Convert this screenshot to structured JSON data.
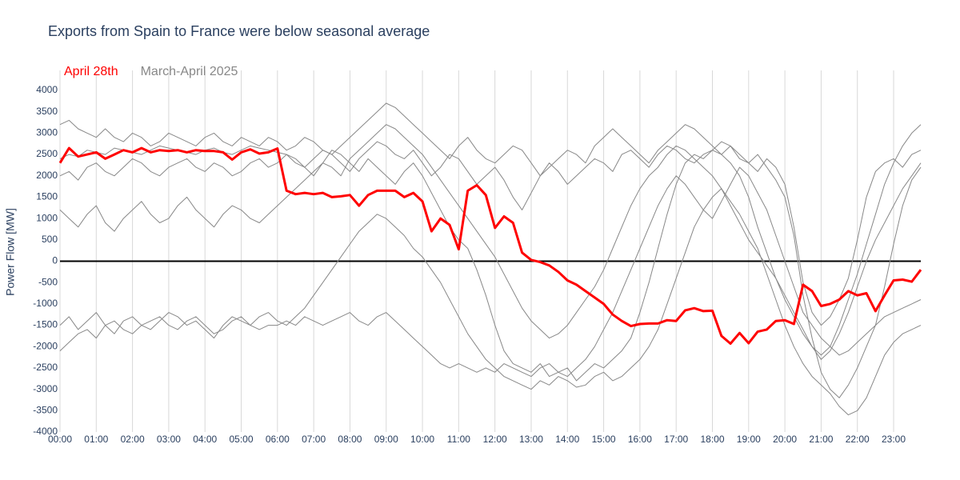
{
  "chart_data": {
    "type": "line",
    "title": "Exports from Spain to France were below seasonal average",
    "y_label": "Power Flow [MW]",
    "x": [
      0,
      15,
      30,
      45,
      60,
      75,
      90,
      105,
      120,
      135,
      150,
      165,
      180,
      195,
      210,
      225,
      240,
      255,
      270,
      285,
      300,
      315,
      330,
      345,
      360,
      375,
      390,
      405,
      420,
      435,
      450,
      465,
      480,
      495,
      510,
      525,
      540,
      555,
      570,
      585,
      600,
      615,
      630,
      645,
      660,
      675,
      690,
      705,
      720,
      735,
      750,
      765,
      780,
      795,
      810,
      825,
      840,
      855,
      870,
      885,
      900,
      915,
      930,
      945,
      960,
      975,
      990,
      1005,
      1020,
      1035,
      1050,
      1065,
      1080,
      1095,
      1110,
      1125,
      1140,
      1155,
      1170,
      1185,
      1200,
      1215,
      1230,
      1245,
      1260,
      1275,
      1290,
      1305,
      1320,
      1335,
      1350,
      1365,
      1380,
      1395,
      1410,
      1425
    ],
    "xlim": [
      0,
      1425
    ],
    "xticks": [
      {
        "value": 0,
        "label": "00:00"
      },
      {
        "value": 60,
        "label": "01:00"
      },
      {
        "value": 120,
        "label": "02:00"
      },
      {
        "value": 180,
        "label": "03:00"
      },
      {
        "value": 240,
        "label": "04:00"
      },
      {
        "value": 300,
        "label": "05:00"
      },
      {
        "value": 360,
        "label": "06:00"
      },
      {
        "value": 420,
        "label": "07:00"
      },
      {
        "value": 480,
        "label": "08:00"
      },
      {
        "value": 540,
        "label": "09:00"
      },
      {
        "value": 600,
        "label": "10:00"
      },
      {
        "value": 660,
        "label": "11:00"
      },
      {
        "value": 720,
        "label": "12:00"
      },
      {
        "value": 780,
        "label": "13:00"
      },
      {
        "value": 840,
        "label": "14:00"
      },
      {
        "value": 900,
        "label": "15:00"
      },
      {
        "value": 960,
        "label": "16:00"
      },
      {
        "value": 1020,
        "label": "17:00"
      },
      {
        "value": 1080,
        "label": "18:00"
      },
      {
        "value": 1140,
        "label": "19:00"
      },
      {
        "value": 1200,
        "label": "20:00"
      },
      {
        "value": 1260,
        "label": "21:00"
      },
      {
        "value": 1320,
        "label": "22:00"
      },
      {
        "value": 1380,
        "label": "23:00"
      }
    ],
    "ylim": [
      -4000,
      4000
    ],
    "yticks": [
      -4000,
      -3500,
      -3000,
      -2500,
      -2000,
      -1500,
      -1000,
      -500,
      0,
      500,
      1000,
      1500,
      2000,
      2500,
      3000,
      3500,
      4000
    ],
    "x_grid": true,
    "series": [
      {
        "name": "March-April 2025",
        "color": "#888888",
        "values": [
          [
            2400,
            2500,
            2450,
            2600,
            2550,
            2500,
            2650,
            2600,
            2550,
            2500,
            2600,
            2700,
            2650,
            2600,
            2550,
            2500,
            2600,
            2650,
            2550,
            2500,
            2600,
            2700,
            2650,
            2600,
            2550,
            2500,
            2300,
            2200,
            2400,
            2600,
            2500,
            2300,
            2100,
            2400,
            2600,
            2800,
            2700,
            2500,
            2400,
            2600,
            2300,
            2000,
            2200,
            2500,
            2400,
            2100,
            1800,
            2000,
            2200,
            1900,
            1500,
            1200,
            1600,
            2000,
            2300,
            2100,
            1800,
            2000,
            2200,
            2400,
            2300,
            2100,
            2500,
            2600,
            2400,
            2200,
            2500,
            2700,
            2600,
            2400,
            2300,
            2500,
            2600,
            2800,
            2700,
            2500,
            2300,
            2100,
            2400,
            2200,
            1800,
            800,
            -500,
            -1200,
            -1500,
            -1300,
            -900,
            -400,
            500,
            1500,
            2100,
            2300,
            2400,
            2200,
            2500,
            2600
          ],
          [
            2000,
            2100,
            1900,
            2200,
            2300,
            2100,
            2000,
            2200,
            2400,
            2300,
            2100,
            2000,
            2200,
            2300,
            2400,
            2200,
            2100,
            2300,
            2200,
            2000,
            2100,
            2300,
            2400,
            2200,
            2300,
            2500,
            2400,
            2200,
            2000,
            2300,
            2600,
            2500,
            2300,
            2100,
            2400,
            2200,
            2000,
            1800,
            2100,
            2300,
            2000,
            1600,
            1200,
            800,
            500,
            300,
            -200,
            -800,
            -1500,
            -2100,
            -2400,
            -2500,
            -2600,
            -2400,
            -2700,
            -2600,
            -2500,
            -2800,
            -2600,
            -2400,
            -2500,
            -2300,
            -2100,
            -1800,
            -1200,
            -500,
            300,
            1100,
            1800,
            2300,
            2500,
            2400,
            2600,
            2500,
            2700,
            2400,
            2300,
            2500,
            2200,
            1900,
            1500,
            600,
            -800,
            -1800,
            -2600,
            -3000,
            -3200,
            -2900,
            -2500,
            -2000,
            -1500,
            -600,
            400,
            1300,
            1900,
            2200
          ],
          [
            -1500,
            -1300,
            -1600,
            -1400,
            -1200,
            -1500,
            -1700,
            -1400,
            -1300,
            -1500,
            -1600,
            -1400,
            -1200,
            -1300,
            -1500,
            -1400,
            -1600,
            -1800,
            -1500,
            -1300,
            -1400,
            -1500,
            -1300,
            -1200,
            -1400,
            -1500,
            -1300,
            -1100,
            -800,
            -500,
            -200,
            100,
            400,
            700,
            900,
            1100,
            1000,
            800,
            600,
            300,
            100,
            -200,
            -500,
            -900,
            -1300,
            -1700,
            -2000,
            -2300,
            -2500,
            -2700,
            -2800,
            -2900,
            -3000,
            -2800,
            -2900,
            -2700,
            -2800,
            -2950,
            -2900,
            -2700,
            -2600,
            -2800,
            -2700,
            -2500,
            -2300,
            -2000,
            -1600,
            -1000,
            -400,
            200,
            800,
            1200,
            1500,
            1700,
            1400,
            1100,
            700,
            300,
            -300,
            -900,
            -1500,
            -2000,
            -2400,
            -2700,
            -2900,
            -3100,
            -3400,
            -3600,
            -3500,
            -3200,
            -2700,
            -2200,
            -1900,
            -1700,
            -1600,
            -1500
          ],
          [
            1200,
            1000,
            800,
            1100,
            1300,
            900,
            700,
            1000,
            1200,
            1400,
            1100,
            900,
            1000,
            1300,
            1500,
            1200,
            1000,
            800,
            1100,
            1300,
            1200,
            1000,
            900,
            1100,
            1300,
            1500,
            1700,
            1900,
            2100,
            2300,
            2200,
            2000,
            2400,
            2600,
            2800,
            3000,
            3200,
            3100,
            2900,
            2700,
            2500,
            2200,
            1900,
            1600,
            1300,
            1000,
            700,
            400,
            100,
            -300,
            -700,
            -1100,
            -1400,
            -1600,
            -1800,
            -1700,
            -1500,
            -1200,
            -900,
            -600,
            -200,
            300,
            800,
            1300,
            1700,
            2000,
            2200,
            2500,
            2700,
            2600,
            2400,
            2200,
            2000,
            1700,
            1300,
            900,
            500,
            200,
            -100,
            -400,
            -800,
            -1200,
            -1600,
            -2000,
            -2300,
            -2100,
            -1700,
            -1200,
            -600,
            0,
            500,
            900,
            1300,
            1700,
            2000,
            2300
          ],
          [
            3200,
            3300,
            3100,
            3000,
            2900,
            3100,
            2900,
            2800,
            3000,
            2900,
            2700,
            2800,
            3000,
            2900,
            2800,
            2700,
            2900,
            3000,
            2800,
            2700,
            2900,
            2800,
            2700,
            2900,
            2800,
            2600,
            2700,
            2900,
            2800,
            2600,
            2500,
            2700,
            2900,
            3100,
            3300,
            3500,
            3700,
            3600,
            3400,
            3200,
            3000,
            2800,
            2600,
            2400,
            2700,
            2900,
            2600,
            2400,
            2300,
            2500,
            2700,
            2600,
            2300,
            2000,
            2200,
            2400,
            2600,
            2500,
            2300,
            2700,
            2900,
            3100,
            2900,
            2700,
            2500,
            2300,
            2600,
            2800,
            3000,
            3200,
            3100,
            2900,
            2700,
            2500,
            2300,
            2000,
            1500,
            800,
            200,
            -400,
            -900,
            -1300,
            -1700,
            -2000,
            -2200,
            -2000,
            -1500,
            -900,
            -300,
            400,
            1100,
            1800,
            2300,
            2700,
            3000,
            3200
          ],
          [
            -2100,
            -1900,
            -1700,
            -1600,
            -1800,
            -1500,
            -1400,
            -1600,
            -1700,
            -1500,
            -1400,
            -1300,
            -1500,
            -1600,
            -1400,
            -1300,
            -1500,
            -1700,
            -1600,
            -1400,
            -1300,
            -1500,
            -1600,
            -1500,
            -1500,
            -1400,
            -1500,
            -1300,
            -1400,
            -1500,
            -1400,
            -1300,
            -1200,
            -1400,
            -1500,
            -1300,
            -1200,
            -1400,
            -1600,
            -1800,
            -2000,
            -2200,
            -2400,
            -2500,
            -2400,
            -2500,
            -2600,
            -2500,
            -2600,
            -2400,
            -2500,
            -2600,
            -2700,
            -2500,
            -2400,
            -2600,
            -2700,
            -2500,
            -2300,
            -2000,
            -1600,
            -1200,
            -700,
            -200,
            300,
            800,
            1300,
            1700,
            2000,
            1800,
            1500,
            1200,
            1000,
            1400,
            1800,
            2200,
            2000,
            1600,
            1200,
            600,
            0,
            -600,
            -1200,
            -1500,
            -1800,
            -2000,
            -2200,
            -2100,
            -1900,
            -1700,
            -1500,
            -1300,
            -1200,
            -1100,
            -1000,
            -900
          ]
        ]
      },
      {
        "name": "April 28th",
        "color": "#ff0000",
        "values": [
          2300,
          2650,
          2450,
          2500,
          2550,
          2400,
          2500,
          2600,
          2550,
          2650,
          2550,
          2600,
          2580,
          2600,
          2550,
          2600,
          2580,
          2580,
          2550,
          2380,
          2550,
          2620,
          2520,
          2550,
          2640,
          1650,
          1570,
          1600,
          1570,
          1600,
          1500,
          1520,
          1550,
          1300,
          1550,
          1650,
          1650,
          1650,
          1500,
          1600,
          1400,
          700,
          1000,
          850,
          280,
          1650,
          1780,
          1550,
          780,
          1050,
          900,
          200,
          30,
          -20,
          -100,
          -250,
          -450,
          -550,
          -700,
          -850,
          -1000,
          -1250,
          -1400,
          -1520,
          -1470,
          -1460,
          -1460,
          -1380,
          -1400,
          -1150,
          -1100,
          -1170,
          -1160,
          -1750,
          -1930,
          -1680,
          -1920,
          -1650,
          -1600,
          -1400,
          -1380,
          -1470,
          -550,
          -700,
          -1050,
          -1000,
          -900,
          -700,
          -800,
          -750,
          -1170,
          -800,
          -450,
          -430,
          -480,
          -200
        ]
      }
    ]
  }
}
